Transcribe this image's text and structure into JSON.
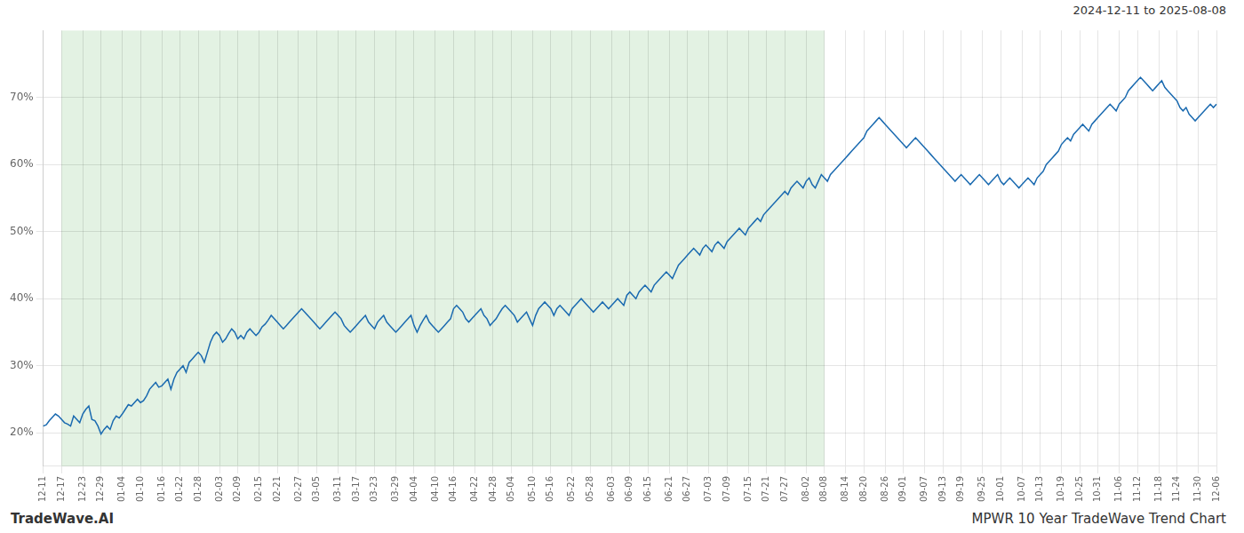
{
  "chart_data": {
    "type": "line",
    "title": "MPWR 10 Year TradeWave Trend Chart",
    "subtitle": "2024-12-11 to 2025-08-08",
    "annotations": [
      {
        "text": "TradeWave.AI"
      }
    ],
    "categories": [
      "12-11",
      null,
      null,
      null,
      null,
      null,
      "12-17",
      null,
      null,
      null,
      null,
      null,
      null,
      "12-23",
      null,
      null,
      null,
      null,
      null,
      "12-29",
      null,
      null,
      null,
      null,
      null,
      null,
      "01-04",
      null,
      null,
      null,
      null,
      null,
      "01-10",
      null,
      null,
      null,
      null,
      null,
      null,
      "01-16",
      null,
      null,
      null,
      null,
      null,
      "01-22",
      null,
      null,
      null,
      null,
      null,
      "01-28",
      null,
      null,
      null,
      null,
      null,
      null,
      "02-03",
      null,
      null,
      null,
      null,
      null,
      "02-09",
      null,
      null,
      null,
      null,
      null,
      null,
      "02-15",
      null,
      null,
      null,
      null,
      null,
      "02-21",
      null,
      null,
      null,
      null,
      null,
      null,
      "02-27",
      null,
      null,
      null,
      null,
      null,
      "03-05",
      null,
      null,
      null,
      null,
      null,
      null,
      "03-11",
      null,
      null,
      null,
      null,
      null,
      "03-17",
      null,
      null,
      null,
      null,
      null,
      "03-23",
      null,
      null,
      null,
      null,
      null,
      null,
      "03-29",
      null,
      null,
      null,
      null,
      null,
      "04-04",
      null,
      null,
      null,
      null,
      null,
      null,
      "04-10",
      null,
      null,
      null,
      null,
      null,
      "04-16",
      null,
      null,
      null,
      null,
      null,
      null,
      "04-22",
      null,
      null,
      null,
      null,
      null,
      "04-28",
      null,
      null,
      null,
      null,
      null,
      "05-04",
      null,
      null,
      null,
      null,
      null,
      null,
      "05-10",
      null,
      null,
      null,
      null,
      null,
      "05-16",
      null,
      null,
      null,
      null,
      null,
      null,
      "05-22",
      null,
      null,
      null,
      null,
      null,
      "05-28",
      null,
      null,
      null,
      null,
      null,
      null,
      "06-03",
      null,
      null,
      null,
      null,
      null,
      "06-09",
      null,
      null,
      null,
      null,
      null,
      "06-15",
      null,
      null,
      null,
      null,
      null,
      null,
      "06-21",
      null,
      null,
      null,
      null,
      null,
      "06-27",
      null,
      null,
      null,
      null,
      null,
      null,
      "07-03",
      null,
      null,
      null,
      null,
      null,
      "07-09",
      null,
      null,
      null,
      null,
      null,
      null,
      "07-15",
      null,
      null,
      null,
      null,
      null,
      "07-21",
      null,
      null,
      null,
      null,
      null,
      "07-27",
      null,
      null,
      null,
      null,
      null,
      null,
      "08-02",
      null,
      null,
      null,
      null,
      null,
      "08-08",
      null,
      null,
      null,
      null,
      null,
      null,
      "08-14",
      null,
      null,
      null,
      null,
      null,
      "08-20",
      null,
      null,
      null,
      null,
      null,
      null,
      "08-26",
      null,
      null,
      null,
      null,
      null,
      "09-01",
      null,
      null,
      null,
      null,
      null,
      null,
      "09-07",
      null,
      null,
      null,
      null,
      null,
      "09-13",
      null,
      null,
      null,
      null,
      null,
      "09-19",
      null,
      null,
      null,
      null,
      null,
      null,
      "09-25",
      null,
      null,
      null,
      null,
      null,
      "10-01",
      null,
      null,
      null,
      null,
      null,
      null,
      "10-07",
      null,
      null,
      null,
      null,
      null,
      "10-13",
      null,
      null,
      null,
      null,
      null,
      null,
      "10-19",
      null,
      null,
      null,
      null,
      null,
      "10-25",
      null,
      null,
      null,
      null,
      null,
      "10-31",
      null,
      null,
      null,
      null,
      null,
      null,
      "11-06",
      null,
      null,
      null,
      null,
      null,
      "11-12",
      null,
      null,
      null,
      null,
      null,
      null,
      "11-18",
      null,
      null,
      null,
      null,
      null,
      "11-24",
      null,
      null,
      null,
      null,
      null,
      null,
      "11-30",
      null,
      null,
      null,
      null,
      null,
      "12-06"
    ],
    "values": [
      21.0,
      21.2,
      21.8,
      22.3,
      22.8,
      22.5,
      22.0,
      21.5,
      21.3,
      21.0,
      22.5,
      22.0,
      21.5,
      22.8,
      23.5,
      24.0,
      22.0,
      21.8,
      21.0,
      19.8,
      20.5,
      21.0,
      20.5,
      21.8,
      22.5,
      22.2,
      22.8,
      23.5,
      24.2,
      24.0,
      24.5,
      25.0,
      24.5,
      24.8,
      25.5,
      26.5,
      27.0,
      27.5,
      26.8,
      27.0,
      27.5,
      28.0,
      26.5,
      28.0,
      29.0,
      29.5,
      30.0,
      29.0,
      30.5,
      31.0,
      31.5,
      32.0,
      31.5,
      30.5,
      32.0,
      33.5,
      34.5,
      35.0,
      34.5,
      33.5,
      34.0,
      34.8,
      35.5,
      35.0,
      34.0,
      34.5,
      34.0,
      35.0,
      35.5,
      35.0,
      34.5,
      35.0,
      35.8,
      36.2,
      36.8,
      37.5,
      37.0,
      36.5,
      36.0,
      35.5,
      36.0,
      36.5,
      37.0,
      37.5,
      38.0,
      38.5,
      38.0,
      37.5,
      37.0,
      36.5,
      36.0,
      35.5,
      36.0,
      36.5,
      37.0,
      37.5,
      38.0,
      37.5,
      37.0,
      36.0,
      35.5,
      35.0,
      35.5,
      36.0,
      36.5,
      37.0,
      37.5,
      36.5,
      36.0,
      35.5,
      36.5,
      37.0,
      37.5,
      36.5,
      36.0,
      35.5,
      35.0,
      35.5,
      36.0,
      36.5,
      37.0,
      37.5,
      36.0,
      35.0,
      36.0,
      36.8,
      37.5,
      36.5,
      36.0,
      35.5,
      35.0,
      35.5,
      36.0,
      36.5,
      37.0,
      38.5,
      39.0,
      38.5,
      38.0,
      37.0,
      36.5,
      37.0,
      37.5,
      38.0,
      38.5,
      37.5,
      37.0,
      36.0,
      36.5,
      37.0,
      37.8,
      38.5,
      39.0,
      38.5,
      38.0,
      37.5,
      36.5,
      37.0,
      37.5,
      38.0,
      37.0,
      36.0,
      37.5,
      38.5,
      39.0,
      39.5,
      39.0,
      38.5,
      37.5,
      38.5,
      39.0,
      38.5,
      38.0,
      37.5,
      38.5,
      39.0,
      39.5,
      40.0,
      39.5,
      39.0,
      38.5,
      38.0,
      38.5,
      39.0,
      39.5,
      39.0,
      38.5,
      39.0,
      39.5,
      40.0,
      39.5,
      39.0,
      40.5,
      41.0,
      40.5,
      40.0,
      41.0,
      41.5,
      42.0,
      41.5,
      41.0,
      42.0,
      42.5,
      43.0,
      43.5,
      44.0,
      43.5,
      43.0,
      44.0,
      45.0,
      45.5,
      46.0,
      46.5,
      47.0,
      47.5,
      47.0,
      46.5,
      47.5,
      48.0,
      47.5,
      47.0,
      48.0,
      48.5,
      48.0,
      47.5,
      48.5,
      49.0,
      49.5,
      50.0,
      50.5,
      50.0,
      49.5,
      50.5,
      51.0,
      51.5,
      52.0,
      51.5,
      52.5,
      53.0,
      53.5,
      54.0,
      54.5,
      55.0,
      55.5,
      56.0,
      55.5,
      56.5,
      57.0,
      57.5,
      57.0,
      56.5,
      57.5,
      58.0,
      57.0,
      56.5,
      57.5,
      58.5,
      58.0,
      57.5,
      58.5,
      59.0,
      59.5,
      60.0,
      60.5,
      61.0,
      61.5,
      62.0,
      62.5,
      63.0,
      63.5,
      64.0,
      65.0,
      65.5,
      66.0,
      66.5,
      67.0,
      66.5,
      66.0,
      65.5,
      65.0,
      64.5,
      64.0,
      63.5,
      63.0,
      62.5,
      63.0,
      63.5,
      64.0,
      63.5,
      63.0,
      62.5,
      62.0,
      61.5,
      61.0,
      60.5,
      60.0,
      59.5,
      59.0,
      58.5,
      58.0,
      57.5,
      58.0,
      58.5,
      58.0,
      57.5,
      57.0,
      57.5,
      58.0,
      58.5,
      58.0,
      57.5,
      57.0,
      57.5,
      58.0,
      58.5,
      57.5,
      57.0,
      57.5,
      58.0,
      57.5,
      57.0,
      56.5,
      57.0,
      57.5,
      58.0,
      57.5,
      57.0,
      58.0,
      58.5,
      59.0,
      60.0,
      60.5,
      61.0,
      61.5,
      62.0,
      63.0,
      63.5,
      64.0,
      63.5,
      64.5,
      65.0,
      65.5,
      66.0,
      65.5,
      65.0,
      66.0,
      66.5,
      67.0,
      67.5,
      68.0,
      68.5,
      69.0,
      68.5,
      68.0,
      69.0,
      69.5,
      70.0,
      71.0,
      71.5,
      72.0,
      72.5,
      73.0,
      72.5,
      72.0,
      71.5,
      71.0,
      71.5,
      72.0,
      72.5,
      71.5,
      71.0,
      70.5,
      70.0,
      69.5,
      68.5,
      68.0,
      68.5,
      67.5,
      67.0,
      66.5,
      67.0,
      67.5,
      68.0,
      68.5,
      69.0,
      68.5,
      69.0
    ],
    "color": "#1a6ab0",
    "shaded_region": {
      "start": "12-17",
      "end": "08-08",
      "color": "#c8e6c8"
    },
    "ylim": [
      15,
      80
    ],
    "yticks": [
      {
        "value": 20,
        "label": "20%"
      },
      {
        "value": 30,
        "label": "30%"
      },
      {
        "value": 40,
        "label": "40%"
      },
      {
        "value": 50,
        "label": "50%"
      },
      {
        "value": 60,
        "label": "60%"
      },
      {
        "value": 70,
        "label": "70%"
      }
    ],
    "grid": true
  }
}
